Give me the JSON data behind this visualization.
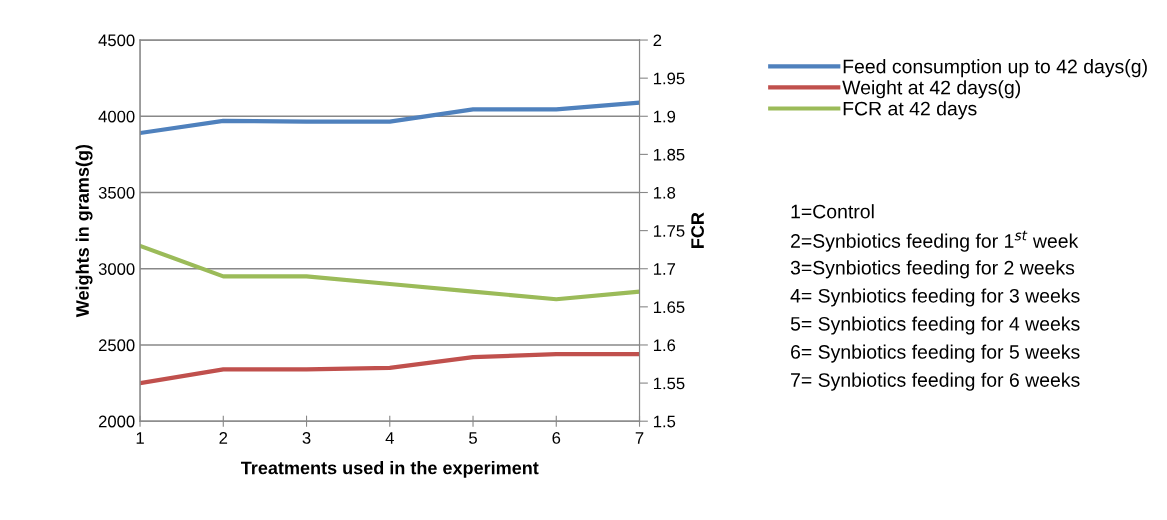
{
  "chart_data": {
    "type": "line",
    "xlabel": "Treatments used in the experiment",
    "ylabel": "Weights in grams(g)",
    "y2label": "FCR",
    "x": [
      1,
      2,
      3,
      4,
      5,
      6,
      7
    ],
    "xlim": [
      1,
      7
    ],
    "xticks": [
      1,
      2,
      3,
      4,
      5,
      6,
      7
    ],
    "ylim": [
      2000,
      4500
    ],
    "yticks": [
      2000,
      2500,
      3000,
      3500,
      4000,
      4500
    ],
    "y2lim": [
      1.5,
      2
    ],
    "y2ticks": [
      1.5,
      1.55,
      1.6,
      1.65,
      1.7,
      1.75,
      1.8,
      1.85,
      1.9,
      1.95,
      2
    ],
    "grid": "y",
    "legend": "right",
    "marker": "none",
    "line_style": "solid",
    "series": [
      {
        "name": "Feed consumption up to 42 days(g)",
        "color": "#4f81bd",
        "values": [
          3890,
          3970,
          3965,
          3965,
          4045,
          4045,
          4090
        ]
      },
      {
        "name": "Weight at 42 days(g)",
        "color": "#c0504d",
        "values": [
          2250,
          2340,
          2340,
          2350,
          2420,
          2440,
          2440
        ]
      },
      {
        "name": "FCR at 42 days",
        "color": "#9bbb59",
        "axis": "y2",
        "values": [
          1.73,
          1.69,
          1.69,
          1.68,
          1.67,
          1.66,
          1.67
        ]
      }
    ],
    "annotations": [
      "1=Control",
      "2=Synbiotics feeding for 1$^{st}$ week",
      "3=Synbiotics feeding for 2 weeks",
      "4= Synbiotics feeding for 3 weeks",
      "5= Synbiotics feeding for 4 weeks",
      "6= Synbiotics feeding for 5 weeks",
      "7= Synbiotics feeding for 6 weeks"
    ]
  }
}
